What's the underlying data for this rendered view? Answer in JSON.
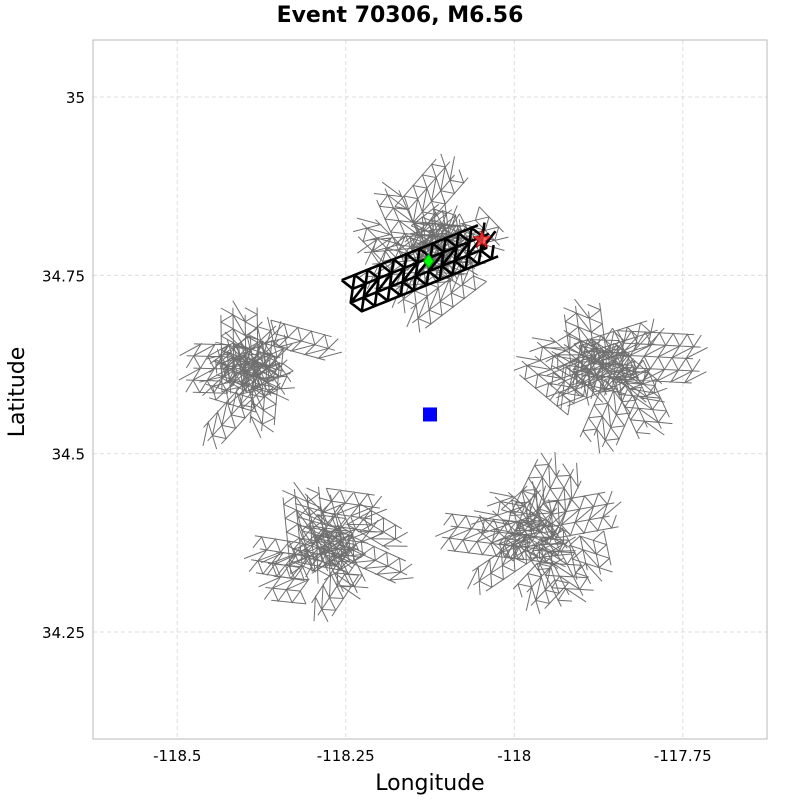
{
  "chart_data": {
    "type": "scatter",
    "title": "Event 70306, M6.56",
    "xlabel": "Longitude",
    "ylabel": "Latitude",
    "xlim": [
      -118.625,
      -117.625
    ],
    "ylim": [
      34.1,
      35.08
    ],
    "xticks": [
      -118.5,
      -118.25,
      -118.0,
      -117.75
    ],
    "yticks": [
      34.25,
      34.5,
      34.75,
      35.0
    ],
    "xtick_labels": [
      "-118.5",
      "-118.25",
      "-118",
      "-117.75"
    ],
    "ytick_labels": [
      "34.25",
      "34.5",
      "34.75",
      "35"
    ],
    "grid": true,
    "colors": {
      "fault_mesh": "#6f6f6f",
      "ruptured_mesh": "#000000",
      "site_marker": "#0000ff",
      "hypocenter_marker": "#00ff00",
      "epicenter_marker": "#ff4040"
    },
    "fault_clusters": [
      {
        "center": [
          -118.39,
          34.62
        ]
      },
      {
        "center": [
          -117.87,
          34.62
        ]
      },
      {
        "center": [
          -118.28,
          34.37
        ]
      },
      {
        "center": [
          -117.97,
          34.38
        ]
      },
      {
        "center": [
          -118.12,
          34.8
        ]
      }
    ],
    "ruptured_section": {
      "from": [
        -118.245,
        34.72
      ],
      "to": [
        -118.035,
        34.8
      ]
    },
    "markers": [
      {
        "name": "site",
        "shape": "square",
        "x": -118.125,
        "y": 34.555
      },
      {
        "name": "hypocenter",
        "shape": "diamond",
        "x": -118.127,
        "y": 34.77
      },
      {
        "name": "epicenter",
        "shape": "star",
        "x": -118.048,
        "y": 34.8
      }
    ]
  }
}
